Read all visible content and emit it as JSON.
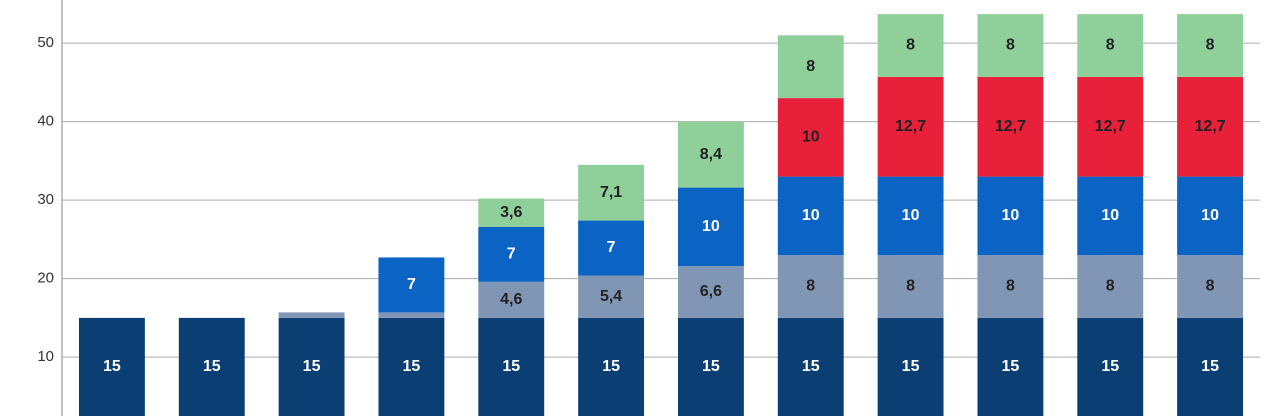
{
  "chart_data": {
    "type": "stacked-bar",
    "categories": [
      null,
      null,
      null,
      null,
      null,
      null,
      null,
      null,
      null,
      null,
      null,
      null
    ],
    "series": [
      {
        "color": "#0b3f73",
        "values": [
          15,
          15,
          15,
          15,
          15,
          15,
          15,
          15,
          15,
          15,
          15,
          15
        ],
        "value_labels": [
          "15",
          "15",
          "15",
          "15",
          "15",
          "15",
          "15",
          "15",
          "15",
          "15",
          "15",
          "15"
        ]
      },
      {
        "color": "#8096b4",
        "values": [
          null,
          null,
          0.7,
          0.7,
          4.6,
          5.4,
          6.6,
          8,
          8,
          8,
          8,
          8
        ],
        "value_labels": [
          null,
          null,
          null,
          null,
          "4,6",
          "5,4",
          "6,6",
          "8",
          "8",
          "8",
          "8",
          "8"
        ]
      },
      {
        "color": "#0b63c4",
        "values": [
          null,
          null,
          null,
          7,
          7,
          7,
          10,
          10,
          10,
          10,
          10,
          10
        ],
        "value_labels": [
          null,
          null,
          null,
          "7",
          "7",
          "7",
          "10",
          "10",
          "10",
          "10",
          "10",
          "10"
        ]
      },
      {
        "color": "#e8203a",
        "values": [
          null,
          null,
          null,
          null,
          null,
          null,
          null,
          10,
          12.7,
          12.7,
          12.7,
          12.7
        ],
        "value_labels": [
          null,
          null,
          null,
          null,
          null,
          null,
          null,
          "10",
          "12,7",
          "12,7",
          "12,7",
          "12,7"
        ]
      },
      {
        "color": "#8fcf9a",
        "values": [
          null,
          null,
          null,
          null,
          3.6,
          7.1,
          8.4,
          8,
          8,
          8,
          8,
          8
        ],
        "value_labels": [
          null,
          null,
          null,
          null,
          "3,6",
          "7,1",
          "8,4",
          "8",
          "8",
          "8",
          "8",
          "8"
        ]
      }
    ],
    "ylim": [
      2.5,
      55.5
    ],
    "yticks": [
      10,
      20,
      30,
      40,
      50
    ],
    "grid": true
  }
}
